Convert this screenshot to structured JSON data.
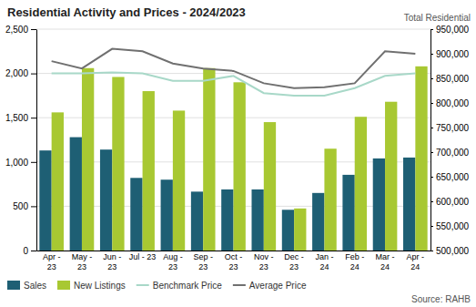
{
  "chart_data": {
    "type": "bar",
    "title": "Residential Activity and Prices - 2024/2023",
    "y2label": "Total Residential",
    "annotations": [
      "Source: RAHB"
    ],
    "categories": [
      "Apr -\n23",
      "May -\n23",
      "Jun -\n23",
      "Jul - 23",
      "Aug -\n23",
      "Sep -\n23",
      "Oct -\n23",
      "Nov -\n23",
      "Dec -\n23",
      "Jan -\n24",
      "Feb -\n24",
      "Mar -\n24",
      "Apr -\n24"
    ],
    "series": [
      {
        "name": "Sales",
        "type": "bar",
        "color": "#1e5f74",
        "values": [
          1130,
          1280,
          1140,
          820,
          800,
          665,
          690,
          690,
          460,
          650,
          855,
          1040,
          1050
        ]
      },
      {
        "name": "New Listings",
        "type": "bar",
        "color": "#a8c832",
        "values": [
          1560,
          2060,
          1960,
          1800,
          1580,
          2060,
          1900,
          1450,
          475,
          1150,
          1510,
          1680,
          2080
        ]
      },
      {
        "name": "Benchmark Price",
        "type": "line",
        "axis": "y2",
        "color": "#a8d8c8",
        "values": [
          860000,
          860000,
          862000,
          860000,
          845000,
          845000,
          855000,
          820000,
          815000,
          815000,
          830000,
          855000,
          860000
        ]
      },
      {
        "name": "Average Price",
        "type": "line",
        "axis": "y2",
        "color": "#707070",
        "values": [
          885000,
          870000,
          910000,
          905000,
          880000,
          870000,
          865000,
          840000,
          830000,
          832000,
          840000,
          905000,
          900000
        ]
      }
    ],
    "ylim": [
      0,
      2500
    ],
    "yticks": [
      0,
      500,
      {
        "value": 1000,
        "label": "1,000"
      },
      {
        "value": 1500,
        "label": "1,500"
      },
      {
        "value": 2000,
        "label": "2,000"
      },
      {
        "value": 2500,
        "label": "2,500"
      }
    ],
    "y2lim": [
      500000,
      950000
    ],
    "y2ticks": [
      {
        "value": 500000,
        "label": "500,000"
      },
      {
        "value": 550000,
        "label": "550,000"
      },
      {
        "value": 600000,
        "label": "600,000"
      },
      {
        "value": 650000,
        "label": "650,000"
      },
      {
        "value": 700000,
        "label": "700,000"
      },
      {
        "value": 750000,
        "label": "750,000"
      },
      {
        "value": 800000,
        "label": "800,000"
      },
      {
        "value": 850000,
        "label": "850,000"
      },
      {
        "value": 900000,
        "label": "900,000"
      },
      {
        "value": 950000,
        "label": "950,000"
      }
    ],
    "grid": true,
    "legend": "lower left"
  }
}
